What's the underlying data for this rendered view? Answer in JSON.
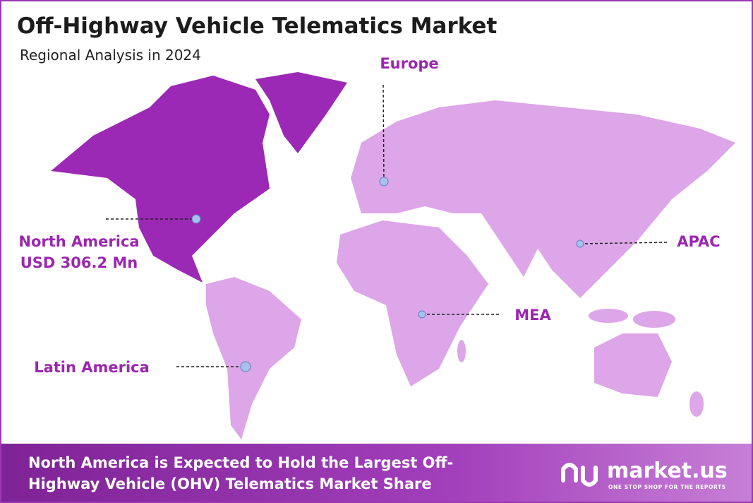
{
  "header": {
    "title": "Off-Highway Vehicle Telematics Market",
    "subtitle": "Regional Analysis in 2024"
  },
  "regions": [
    {
      "name": "North America",
      "value": "USD 306.2 Mn"
    },
    {
      "name": "Europe"
    },
    {
      "name": "APAC"
    },
    {
      "name": "MEA"
    },
    {
      "name": "Latin America"
    }
  ],
  "footer": {
    "lines": [
      "North America is Expected to Hold the Largest Off-",
      "Highway Vehicle (OHV) Telematics Market Share"
    ]
  },
  "logo": {
    "name": "market.us",
    "tagline": "ONE STOP SHOP FOR THE REPORTS"
  }
}
